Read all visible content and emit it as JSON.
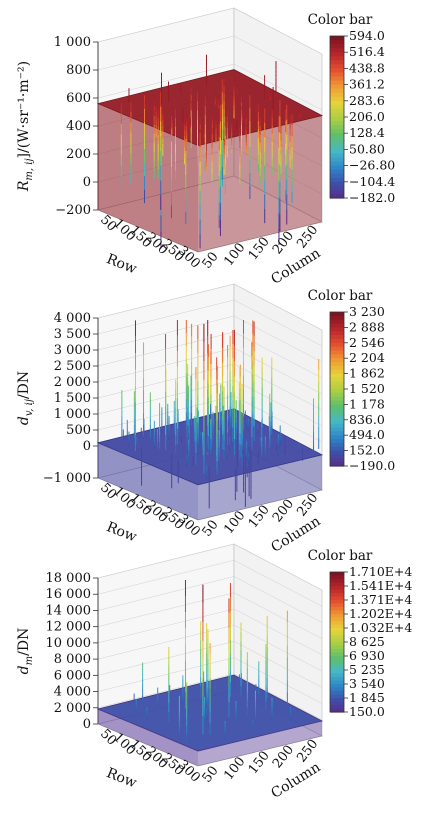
{
  "chart_data": [
    {
      "type": "surface3d",
      "zlabel": "R_{m, ij}/(W·sr⁻¹·m⁻²)",
      "zlabel_main": "R",
      "zlabel_sub": "m, ij",
      "zlabel_rest": "]/(W·sr⁻¹·m⁻²)",
      "xlabel": "Row",
      "ylabel": "Column",
      "z_ticks": [
        "1 000",
        "800",
        "600",
        "400",
        "200",
        "0",
        "−200"
      ],
      "z_values": [
        1000,
        800,
        600,
        400,
        200,
        0,
        -200
      ],
      "zlim": [
        -200,
        1000
      ],
      "row_ticks": [
        "50",
        "100",
        "150",
        "200",
        "250",
        "300"
      ],
      "column_ticks": [
        "50",
        "100",
        "150",
        "200",
        "250"
      ],
      "surface_level": 560,
      "colorbar": {
        "title": "Color bar",
        "ticks": [
          "594.0",
          "516.4",
          "438.8",
          "361.2",
          "283.6",
          "206.0",
          "128.4",
          "50.80",
          "−26.80",
          "−104.4",
          "−182.0"
        ],
        "range": [
          -182.0,
          594.0
        ]
      }
    },
    {
      "type": "surface3d",
      "zlabel": "d_{v, ij}/DN",
      "zlabel_main": "d",
      "zlabel_sub": "v, ij",
      "zlabel_rest": "/DN",
      "xlabel": "Row",
      "ylabel": "Column",
      "z_ticks": [
        "4 000",
        "3 500",
        "3 000",
        "2 500",
        "2 000",
        "1 500",
        "1 000",
        "500",
        "0",
        "−1 000"
      ],
      "z_values": [
        4000,
        3500,
        3000,
        2500,
        2000,
        1500,
        1000,
        500,
        0,
        -1000
      ],
      "zlim": [
        -1000,
        4000
      ],
      "row_ticks": [
        "50",
        "100",
        "150",
        "200",
        "250",
        "300"
      ],
      "column_ticks": [
        "50",
        "100",
        "150",
        "200",
        "250"
      ],
      "surface_level": 100,
      "colorbar": {
        "title": "Color bar",
        "ticks": [
          "3 230",
          "2 888",
          "2 546",
          "2 204",
          "1 862",
          "1 520",
          "1 178",
          "836.0",
          "494.0",
          "152.0",
          "−190.0"
        ],
        "range": [
          -190.0,
          3230
        ]
      }
    },
    {
      "type": "surface3d",
      "zlabel": "d_{m}/DN",
      "zlabel_main": "d",
      "zlabel_sub": "m",
      "zlabel_rest": "/DN",
      "xlabel": "Row",
      "ylabel": "Column",
      "z_ticks": [
        "18 000",
        "16 000",
        "14 000",
        "12 000",
        "10 000",
        "8 000",
        "6 000",
        "4 000",
        "2 000",
        "0"
      ],
      "z_values": [
        18000,
        16000,
        14000,
        12000,
        10000,
        8000,
        6000,
        4000,
        2000,
        0
      ],
      "zlim": [
        0,
        18000
      ],
      "row_ticks": [
        "50",
        "100",
        "150",
        "200",
        "250",
        "300"
      ],
      "column_ticks": [
        "50",
        "100",
        "150",
        "200",
        "250"
      ],
      "surface_level": 1845,
      "colorbar": {
        "title": "Color bar",
        "ticks": [
          "1.710E+4",
          "1.541E+4",
          "1.371E+4",
          "1.202E+4",
          "1.032E+4",
          "8 625",
          "6 930",
          "5 235",
          "3 540",
          "1 845",
          "150.0"
        ],
        "range": [
          150.0,
          17100
        ]
      }
    }
  ]
}
